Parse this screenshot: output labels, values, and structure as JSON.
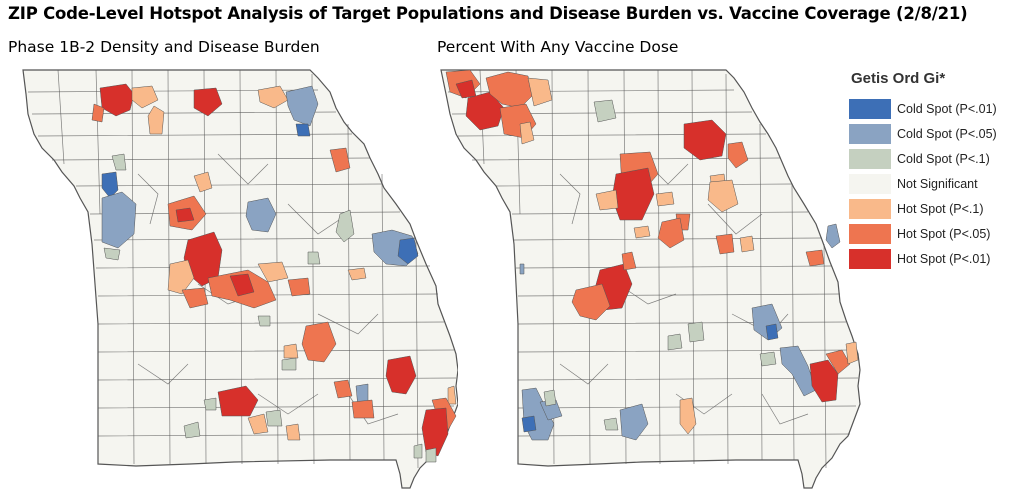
{
  "title": "ZIP Code-Level Hotspot Analysis of Target Populations and Disease Burden vs. Vaccine Coverage (2/8/21)",
  "maps": [
    {
      "subtitle": "Phase 1B-2 Density and Disease Burden"
    },
    {
      "subtitle": "Percent With Any Vaccine Dose"
    }
  ],
  "legend": {
    "title": "Getis Ord Gi*",
    "items": [
      {
        "label": "Cold Spot (P<.01)",
        "color": "#3d6fb6"
      },
      {
        "label": "Cold Spot (P<.05)",
        "color": "#8aa3c2"
      },
      {
        "label": "Cold Spot (P<.1)",
        "color": "#c5d0c0"
      },
      {
        "label": "Not Significant",
        "color": "#f5f5f0"
      },
      {
        "label": "Hot Spot (P<.1)",
        "color": "#f9b98a"
      },
      {
        "label": "Hot Spot (P<.05)",
        "color": "#ee7550"
      },
      {
        "label": "Hot Spot (P<.01)",
        "color": "#d7302b"
      }
    ]
  },
  "colors": {
    "county_fill": "#f5f5f0",
    "county_border": "#555555"
  }
}
